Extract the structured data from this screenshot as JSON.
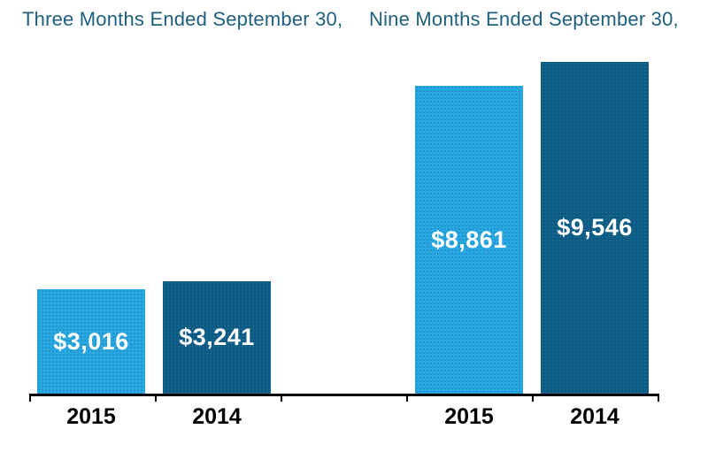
{
  "colors": {
    "series_2015_light_blue": "#29A8E0",
    "series_2014_dark_blue": "#0D5A86",
    "group_title_text": "#1F5F7F",
    "axis": "#000000",
    "value_label_text": "#FFFFFF",
    "category_label_text": "#000000",
    "background": "#FFFFFF"
  },
  "chart_data": {
    "type": "bar",
    "title": "",
    "legend": "none",
    "y_axis": "hidden",
    "x_axis": "visible",
    "grid": "off",
    "value_label_position": "inside-center",
    "ylim": [
      0,
      9546
    ],
    "groups": [
      {
        "group_label": "Three Months Ended September 30,",
        "bars": [
          {
            "category": "2015",
            "value": 3016,
            "label": "$3,016",
            "color": "#29A8E0"
          },
          {
            "category": "2014",
            "value": 3241,
            "label": "$3,241",
            "color": "#0D5A86"
          }
        ]
      },
      {
        "group_label": "Nine Months Ended September 30,",
        "bars": [
          {
            "category": "2015",
            "value": 8861,
            "label": "$8,861",
            "color": "#29A8E0"
          },
          {
            "category": "2014",
            "value": 9546,
            "label": "$9,546",
            "color": "#0D5A86"
          }
        ]
      }
    ]
  }
}
